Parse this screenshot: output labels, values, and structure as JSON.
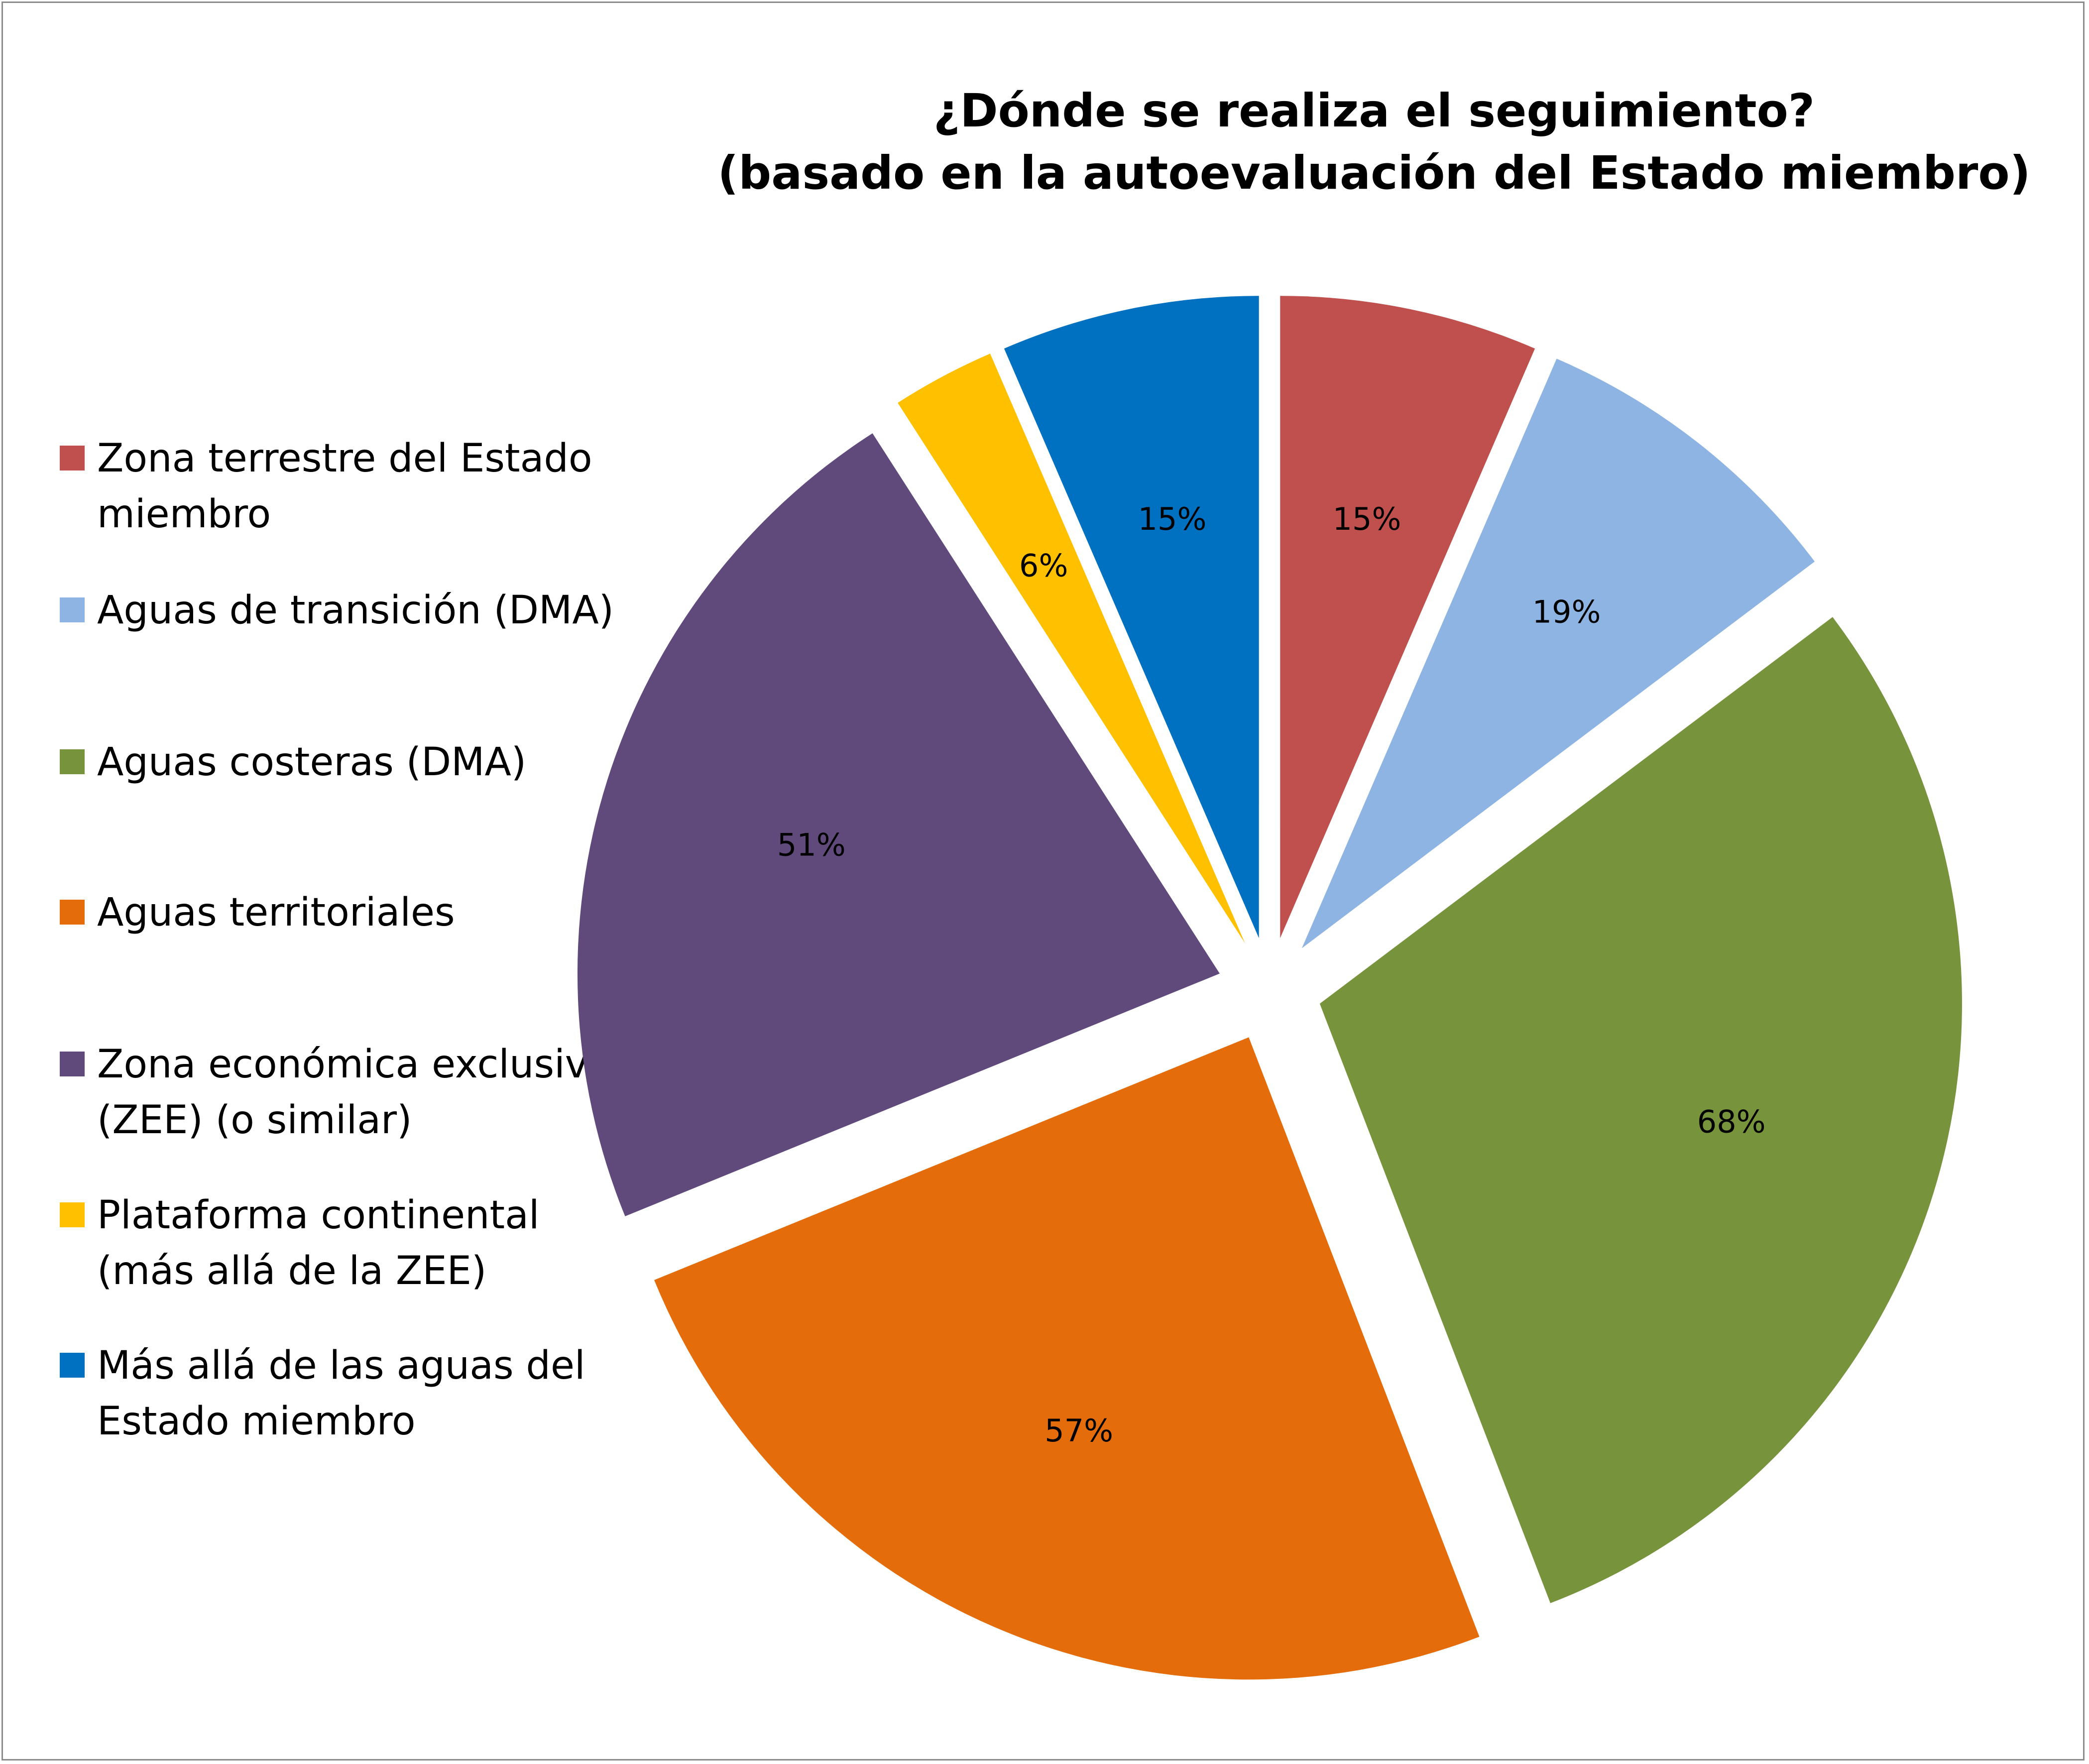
{
  "chart_data": {
    "type": "pie",
    "title_lines": [
      "¿Dónde se realiza el seguimiento?",
      "(basado en la autoevaluación del Estado miembro)"
    ],
    "categories": [
      "Zona terrestre del Estado miembro",
      "Aguas de transición (DMA)",
      "Aguas costeras (DMA)",
      "Aguas territoriales",
      "Zona económica exclusiva (ZEE) (o similar)",
      "Plataforma continental (más allá de la ZEE)",
      "Más allá de las aguas del Estado miembro"
    ],
    "values": [
      15,
      19,
      68,
      57,
      51,
      6,
      15
    ],
    "data_labels": [
      "15%",
      "19%",
      "68%",
      "57%",
      "51%",
      "6%",
      "15%"
    ],
    "colors": [
      "#c0504d",
      "#8eb4e3",
      "#77933c",
      "#e46c0a",
      "#604a7b",
      "#ffc000",
      "#0070c0"
    ],
    "legend_position": "left",
    "exploded": true
  }
}
